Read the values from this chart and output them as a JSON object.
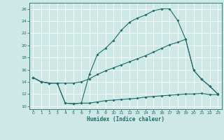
{
  "bg_color": "#cde8e5",
  "grid_color": "#b0d5d0",
  "line_color": "#1e6b6b",
  "xlabel": "Humidex (Indice chaleur)",
  "xlim": [
    -0.5,
    23.5
  ],
  "ylim": [
    9.5,
    27.0
  ],
  "xticks": [
    0,
    1,
    2,
    3,
    4,
    5,
    6,
    7,
    8,
    9,
    10,
    11,
    12,
    13,
    14,
    15,
    16,
    17,
    18,
    19,
    20,
    21,
    22,
    23
  ],
  "yticks": [
    10,
    12,
    14,
    16,
    18,
    20,
    22,
    24,
    26
  ],
  "curve1_x": [
    0,
    1,
    2,
    3,
    4,
    5,
    6,
    7,
    8,
    9,
    10,
    11,
    12,
    13,
    14,
    15,
    16,
    17,
    18,
    19,
    20,
    21,
    22,
    23
  ],
  "curve1_y": [
    14.7,
    14.0,
    13.8,
    13.8,
    10.5,
    10.4,
    10.5,
    15.2,
    18.5,
    19.5,
    20.8,
    22.5,
    23.8,
    24.5,
    25.0,
    25.7,
    26.0,
    26.0,
    24.1,
    21.0,
    15.9,
    14.4,
    13.3,
    12.0
  ],
  "curve2_x": [
    0,
    1,
    2,
    3,
    4,
    5,
    6,
    7,
    8,
    9,
    10,
    11,
    12,
    13,
    14,
    15,
    16,
    17,
    18,
    19,
    20,
    21,
    22,
    23
  ],
  "curve2_y": [
    14.7,
    14.0,
    13.8,
    13.8,
    13.8,
    13.8,
    14.0,
    14.5,
    15.2,
    15.8,
    16.3,
    16.8,
    17.3,
    17.8,
    18.3,
    18.9,
    19.5,
    20.1,
    20.5,
    21.0,
    15.9,
    14.4,
    13.3,
    12.0
  ],
  "curve3_x": [
    0,
    1,
    2,
    3,
    4,
    5,
    6,
    7,
    8,
    9,
    10,
    11,
    12,
    13,
    14,
    15,
    16,
    17,
    18,
    19,
    20,
    21,
    22,
    23
  ],
  "curve3_y": [
    14.7,
    14.0,
    13.8,
    13.8,
    10.5,
    10.4,
    10.5,
    10.5,
    10.7,
    10.9,
    11.0,
    11.1,
    11.2,
    11.3,
    11.5,
    11.6,
    11.7,
    11.8,
    11.9,
    12.0,
    12.0,
    12.1,
    11.9,
    11.9
  ]
}
